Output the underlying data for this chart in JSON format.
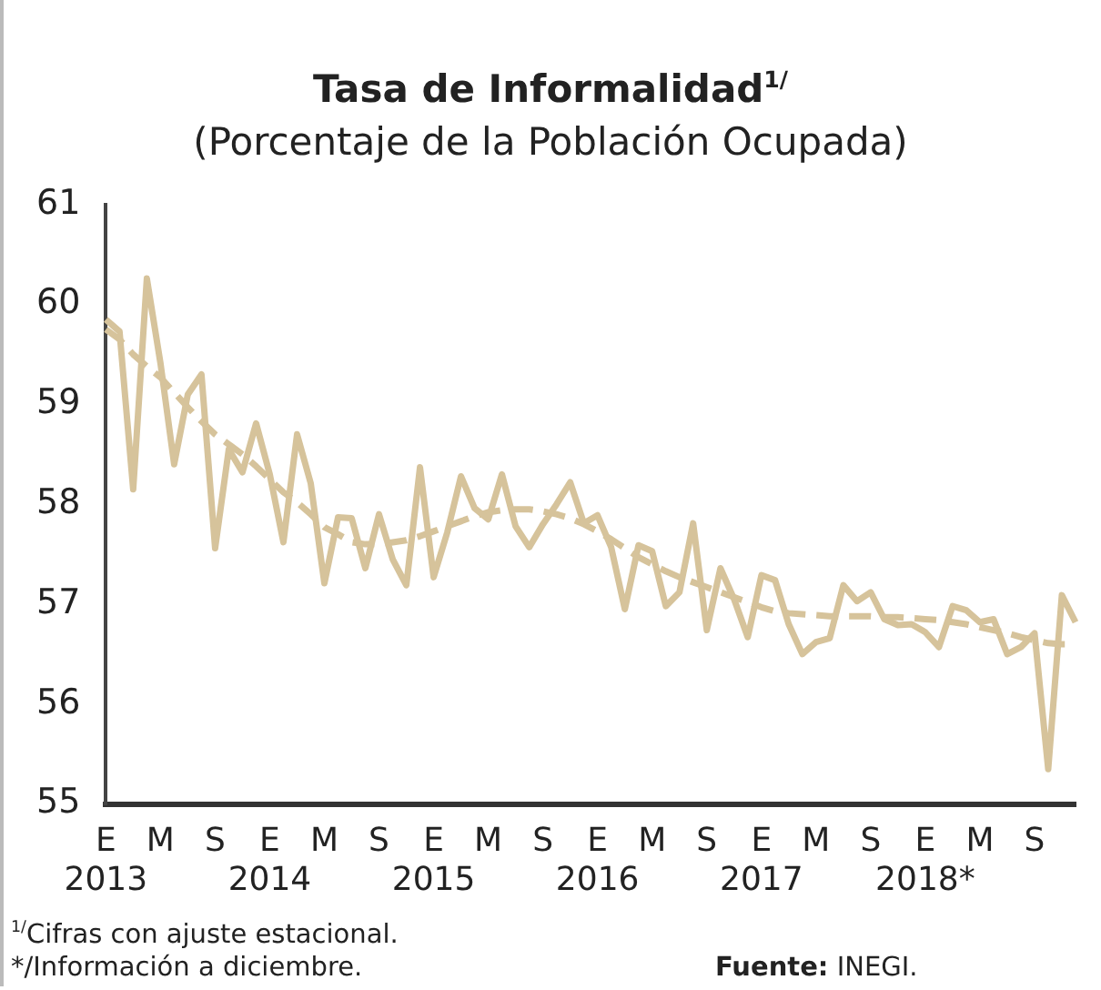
{
  "chart_data": {
    "type": "line",
    "title": "Tasa de Informalidad$^{1/}$",
    "subtitle": "(Porcentaje de la Población Ocupada)",
    "categories": [
      "E\n2013",
      null,
      null,
      null,
      "M",
      null,
      null,
      null,
      "S",
      null,
      null,
      null,
      "E\n2014",
      null,
      null,
      null,
      "M",
      null,
      null,
      null,
      "S",
      null,
      null,
      null,
      "E\n2015",
      null,
      null,
      null,
      "M",
      null,
      null,
      null,
      "S",
      null,
      null,
      null,
      "E\n2016",
      null,
      null,
      null,
      "M",
      null,
      null,
      null,
      "S",
      null,
      null,
      null,
      "E\n2017",
      null,
      null,
      null,
      "M",
      null,
      null,
      null,
      "S",
      null,
      null,
      null,
      "E\n2018*",
      null,
      null,
      null,
      "M",
      null,
      null,
      null,
      "S",
      null,
      null,
      null
    ],
    "series": [
      {
        "color": "#d6c39b",
        "line_style": "solid",
        "values": [
          59.85,
          59.73,
          58.15,
          60.26,
          59.41,
          58.4,
          59.1,
          59.3,
          57.56,
          58.55,
          58.32,
          58.81,
          58.3,
          57.62,
          58.7,
          58.21,
          57.21,
          57.87,
          57.86,
          57.36,
          57.9,
          57.45,
          57.19,
          58.37,
          57.27,
          57.72,
          58.28,
          57.96,
          57.85,
          58.3,
          57.78,
          57.57,
          57.8,
          58.0,
          58.22,
          57.81,
          57.89,
          57.57,
          56.95,
          57.59,
          57.53,
          56.98,
          57.12,
          57.81,
          56.74,
          57.36,
          57.05,
          56.67,
          57.29,
          57.24,
          56.8,
          56.5,
          56.62,
          56.66,
          57.19,
          57.03,
          57.12,
          56.85,
          56.79,
          56.8,
          56.72,
          56.57,
          56.98,
          56.94,
          56.82,
          56.85,
          56.5,
          56.57,
          56.71,
          55.35,
          57.09,
          56.82
        ]
      },
      {
        "color": "#d6c39b",
        "line_style": "dashed",
        "values": [
          59.75,
          59.65,
          59.5,
          59.38,
          59.27,
          59.12,
          58.97,
          58.83,
          58.7,
          58.6,
          58.5,
          58.38,
          58.25,
          58.12,
          58.02,
          57.9,
          57.77,
          57.7,
          57.62,
          57.6,
          57.6,
          57.62,
          57.64,
          57.68,
          57.73,
          57.78,
          57.83,
          57.88,
          57.92,
          57.94,
          57.95,
          57.95,
          57.93,
          57.9,
          57.86,
          57.8,
          57.73,
          57.65,
          57.56,
          57.47,
          57.4,
          57.33,
          57.27,
          57.22,
          57.17,
          57.12,
          57.07,
          57.02,
          56.97,
          56.93,
          56.91,
          56.9,
          56.89,
          56.88,
          56.88,
          56.88,
          56.88,
          56.87,
          56.87,
          56.86,
          56.85,
          56.84,
          56.82,
          56.8,
          56.77,
          56.74,
          56.71,
          56.67,
          56.64,
          56.61,
          56.6,
          56.6
        ]
      }
    ],
    "ylim": [
      55,
      61
    ],
    "yticks": [
      55,
      56,
      57,
      58,
      59,
      60,
      61
    ],
    "grid": false,
    "legend": false,
    "marker": "none",
    "annotations": [
      "$^{1/}$Cifras con ajuste estacional.",
      "*/Información a diciembre.",
      "Fuente: INEGI."
    ]
  }
}
